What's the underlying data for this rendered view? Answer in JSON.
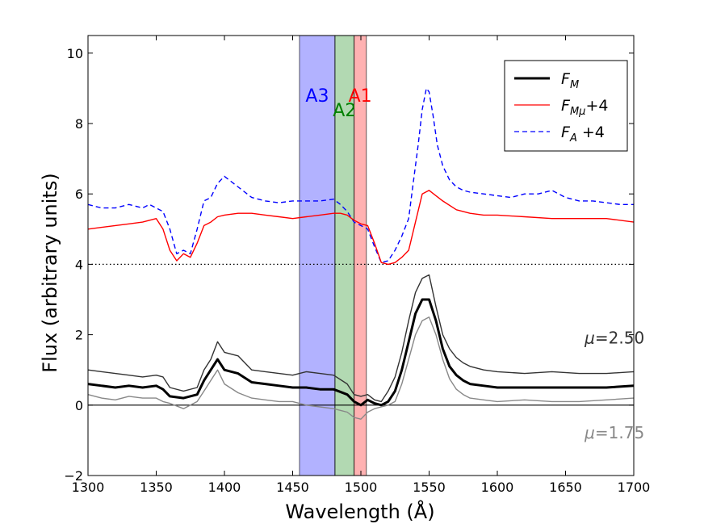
{
  "chart_data": {
    "type": "line",
    "title": "",
    "xlabel": "Wavelength (Å)",
    "ylabel": "Flux (arbitrary units)",
    "xlim": [
      1300,
      1700
    ],
    "ylim": [
      -2,
      10.5
    ],
    "grid": false,
    "x_ticks": [
      1300,
      1350,
      1400,
      1450,
      1500,
      1550,
      1600,
      1650,
      1700
    ],
    "y_ticks": [
      -2,
      0,
      2,
      4,
      6,
      8,
      10
    ],
    "x_tick_labels": [
      "1300",
      "1350",
      "1400",
      "1450",
      "1500",
      "1550",
      "1600",
      "1650",
      "1700"
    ],
    "y_tick_labels": [
      "−2",
      "0",
      "2",
      "4",
      "6",
      "8",
      "10"
    ],
    "legend": {
      "placement": "top-right",
      "entries": [
        {
          "label": "F",
          "sub": "M",
          "suffix": "",
          "color": "#000000",
          "style": "solid",
          "width": 3
        },
        {
          "label": "F",
          "sub": "Mμ",
          "suffix": "+4",
          "color": "#ff0000",
          "style": "solid",
          "width": 1.3
        },
        {
          "label": "F",
          "sub": "A",
          "suffix": " +4",
          "color": "#0000ff",
          "style": "dashed",
          "width": 1.3
        }
      ]
    },
    "bands": [
      {
        "name": "A3",
        "label": "A3",
        "x0": 1455,
        "x1": 1481,
        "color": "#0000ff",
        "alpha": 0.3
      },
      {
        "name": "A2",
        "label": "A2",
        "x0": 1481,
        "x1": 1495,
        "color": "#008000",
        "alpha": 0.3
      },
      {
        "name": "A1",
        "label": "A1",
        "x0": 1495,
        "x1": 1504,
        "color": "#ff0000",
        "alpha": 0.3
      }
    ],
    "hlines": [
      {
        "name": "offset-line",
        "y": 4,
        "style": "dotted",
        "color": "#000000"
      },
      {
        "name": "zero-line",
        "y": 0,
        "style": "solid",
        "color": "#000000"
      }
    ],
    "annotations": [
      {
        "name": "mu-high-label",
        "prefix": "μ",
        "text": "=2.50",
        "x": 1664,
        "y": 1.75,
        "color": "#333333"
      },
      {
        "name": "mu-low-label",
        "prefix": "μ",
        "text": "=1.75",
        "x": 1664,
        "y": -0.95,
        "color": "#888888"
      }
    ],
    "series": [
      {
        "name": "F_A +4",
        "color": "#0000ff",
        "style": "dashed",
        "x": [
          1300,
          1310,
          1320,
          1330,
          1340,
          1345,
          1350,
          1355,
          1360,
          1365,
          1370,
          1375,
          1380,
          1385,
          1390,
          1395,
          1400,
          1410,
          1420,
          1430,
          1440,
          1450,
          1460,
          1470,
          1480,
          1485,
          1490,
          1495,
          1500,
          1505,
          1510,
          1515,
          1520,
          1525,
          1530,
          1535,
          1538,
          1542,
          1545,
          1548,
          1550,
          1553,
          1556,
          1560,
          1565,
          1570,
          1575,
          1580,
          1590,
          1600,
          1610,
          1620,
          1630,
          1640,
          1650,
          1660,
          1670,
          1680,
          1690,
          1700
        ],
        "y": [
          5.7,
          5.6,
          5.6,
          5.7,
          5.6,
          5.7,
          5.6,
          5.5,
          5.0,
          4.3,
          4.4,
          4.3,
          5.0,
          5.8,
          5.9,
          6.3,
          6.5,
          6.2,
          5.9,
          5.8,
          5.75,
          5.8,
          5.8,
          5.8,
          5.85,
          5.7,
          5.5,
          5.2,
          5.1,
          5.0,
          4.5,
          4.05,
          4.1,
          4.4,
          4.8,
          5.3,
          6.2,
          7.4,
          8.4,
          9.0,
          8.9,
          8.2,
          7.4,
          6.8,
          6.4,
          6.2,
          6.1,
          6.05,
          6.0,
          5.95,
          5.9,
          6.0,
          6.0,
          6.1,
          5.9,
          5.8,
          5.8,
          5.75,
          5.7,
          5.7
        ]
      },
      {
        "name": "F_Mμ +4",
        "color": "#ff0000",
        "style": "solid",
        "x": [
          1300,
          1310,
          1320,
          1330,
          1340,
          1350,
          1355,
          1360,
          1365,
          1370,
          1375,
          1380,
          1385,
          1390,
          1395,
          1400,
          1410,
          1420,
          1430,
          1440,
          1450,
          1460,
          1470,
          1480,
          1485,
          1490,
          1495,
          1500,
          1505,
          1510,
          1515,
          1520,
          1525,
          1530,
          1535,
          1540,
          1545,
          1550,
          1555,
          1560,
          1570,
          1580,
          1590,
          1600,
          1620,
          1640,
          1660,
          1680,
          1700
        ],
        "y": [
          5.0,
          5.05,
          5.1,
          5.15,
          5.2,
          5.3,
          5.0,
          4.4,
          4.1,
          4.3,
          4.2,
          4.6,
          5.1,
          5.2,
          5.35,
          5.4,
          5.45,
          5.45,
          5.4,
          5.35,
          5.3,
          5.35,
          5.4,
          5.45,
          5.45,
          5.4,
          5.25,
          5.15,
          5.1,
          4.6,
          4.05,
          4.0,
          4.05,
          4.2,
          4.4,
          5.2,
          6.0,
          6.1,
          5.95,
          5.8,
          5.55,
          5.45,
          5.4,
          5.4,
          5.35,
          5.3,
          5.3,
          5.3,
          5.2
        ]
      },
      {
        "name": "μ=2.50",
        "color": "#333333",
        "style": "solid",
        "x": [
          1300,
          1310,
          1320,
          1330,
          1340,
          1350,
          1355,
          1360,
          1370,
          1380,
          1385,
          1390,
          1395,
          1400,
          1410,
          1420,
          1430,
          1440,
          1450,
          1460,
          1470,
          1480,
          1490,
          1495,
          1500,
          1505,
          1510,
          1515,
          1520,
          1525,
          1530,
          1535,
          1540,
          1545,
          1550,
          1555,
          1560,
          1565,
          1570,
          1575,
          1580,
          1590,
          1600,
          1620,
          1640,
          1660,
          1680,
          1700
        ],
        "y": [
          1.0,
          0.95,
          0.9,
          0.85,
          0.8,
          0.85,
          0.8,
          0.5,
          0.4,
          0.5,
          1.0,
          1.3,
          1.8,
          1.5,
          1.4,
          1.0,
          0.95,
          0.9,
          0.85,
          0.95,
          0.9,
          0.85,
          0.6,
          0.3,
          0.25,
          0.3,
          0.15,
          0.1,
          0.4,
          0.8,
          1.5,
          2.4,
          3.2,
          3.6,
          3.7,
          2.8,
          2.0,
          1.6,
          1.35,
          1.2,
          1.1,
          1.0,
          0.95,
          0.9,
          0.95,
          0.9,
          0.9,
          0.95
        ]
      },
      {
        "name": "F_M",
        "color": "#000000",
        "style": "solid-bold",
        "x": [
          1300,
          1310,
          1320,
          1330,
          1340,
          1350,
          1355,
          1360,
          1370,
          1380,
          1385,
          1390,
          1395,
          1400,
          1410,
          1420,
          1430,
          1440,
          1450,
          1460,
          1470,
          1480,
          1490,
          1495,
          1500,
          1505,
          1510,
          1515,
          1520,
          1525,
          1530,
          1535,
          1540,
          1545,
          1550,
          1555,
          1560,
          1565,
          1570,
          1575,
          1580,
          1590,
          1600,
          1620,
          1640,
          1660,
          1680,
          1700
        ],
        "y": [
          0.6,
          0.55,
          0.5,
          0.55,
          0.5,
          0.55,
          0.45,
          0.25,
          0.2,
          0.3,
          0.7,
          1.0,
          1.3,
          1.0,
          0.9,
          0.65,
          0.6,
          0.55,
          0.5,
          0.5,
          0.45,
          0.45,
          0.3,
          0.1,
          0.0,
          0.15,
          0.05,
          0.0,
          0.1,
          0.4,
          1.0,
          1.8,
          2.6,
          3.0,
          3.0,
          2.4,
          1.6,
          1.1,
          0.85,
          0.7,
          0.6,
          0.55,
          0.5,
          0.5,
          0.5,
          0.5,
          0.5,
          0.55
        ]
      },
      {
        "name": "μ=1.75",
        "color": "#888888",
        "style": "solid",
        "x": [
          1300,
          1310,
          1320,
          1330,
          1340,
          1350,
          1355,
          1360,
          1370,
          1380,
          1385,
          1390,
          1395,
          1400,
          1410,
          1420,
          1430,
          1440,
          1450,
          1460,
          1470,
          1480,
          1490,
          1495,
          1500,
          1505,
          1510,
          1515,
          1520,
          1525,
          1530,
          1535,
          1540,
          1545,
          1550,
          1555,
          1560,
          1565,
          1570,
          1575,
          1580,
          1590,
          1600,
          1620,
          1640,
          1660,
          1680,
          1700
        ],
        "y": [
          0.3,
          0.2,
          0.15,
          0.25,
          0.2,
          0.2,
          0.1,
          0.05,
          -0.1,
          0.1,
          0.4,
          0.7,
          1.0,
          0.6,
          0.35,
          0.2,
          0.15,
          0.1,
          0.1,
          0.0,
          -0.05,
          -0.1,
          -0.2,
          -0.35,
          -0.4,
          -0.2,
          -0.1,
          -0.05,
          0.0,
          0.1,
          0.6,
          1.3,
          2.0,
          2.4,
          2.5,
          2.0,
          1.3,
          0.75,
          0.45,
          0.3,
          0.2,
          0.15,
          0.1,
          0.15,
          0.1,
          0.1,
          0.15,
          0.2
        ]
      }
    ]
  }
}
